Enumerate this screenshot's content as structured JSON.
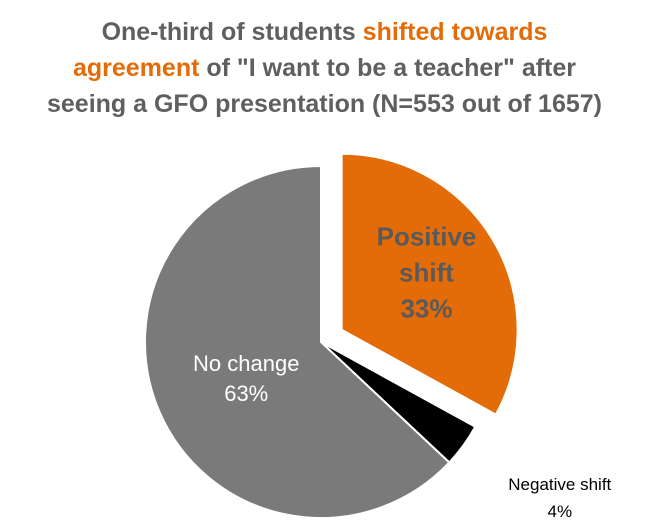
{
  "title": {
    "line1_a": "One-third of students ",
    "line1_b": "shifted towards",
    "line2_a": "agreement",
    "line2_b": " of \"I want to be a teacher\" after",
    "line3": "seeing a GFO presentation (N=553 out of 1657)"
  },
  "colors": {
    "accent": "#e36c09",
    "title_gray": "#5f5f5f",
    "slice_positive": "#e36c09",
    "slice_negative": "#000000",
    "slice_nochange": "#7a7a7a"
  },
  "chart_data": {
    "type": "pie",
    "slices": [
      {
        "label_lines": [
          "Positive",
          "shift"
        ],
        "pct_label": "33%",
        "value": 33,
        "exploded": true
      },
      {
        "label_lines": [
          "Negative shift"
        ],
        "pct_label": "4%",
        "value": 4,
        "exploded": false
      },
      {
        "label_lines": [
          "No change"
        ],
        "pct_label": "63%",
        "value": 63,
        "exploded": false
      }
    ]
  }
}
